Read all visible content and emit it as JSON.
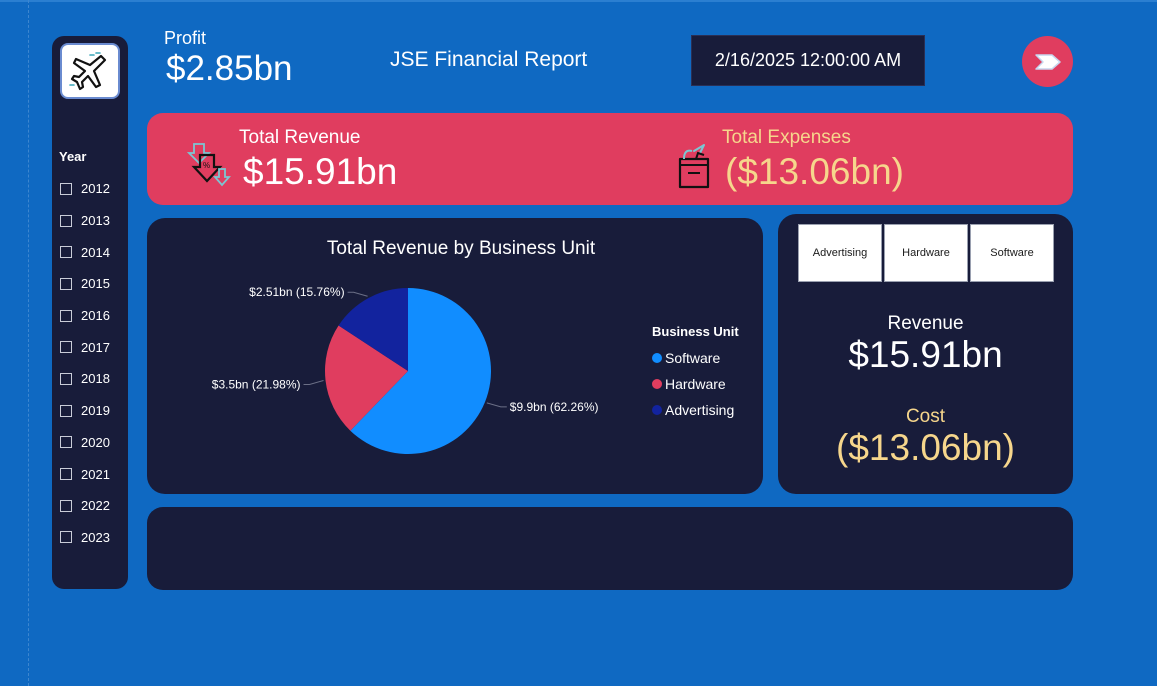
{
  "header": {
    "profit_label": "Profit",
    "profit_value": "$2.85bn",
    "report_title": "JSE Financial Report",
    "datetime": "2/16/2025 12:00:00 AM",
    "logo_icon": "airplane-icon",
    "nav_icon": "arrow-right-icon"
  },
  "sidebar": {
    "filter_title": "Year",
    "years": [
      {
        "label": "2012",
        "checked": false
      },
      {
        "label": "2013",
        "checked": false
      },
      {
        "label": "2014",
        "checked": false
      },
      {
        "label": "2015",
        "checked": false
      },
      {
        "label": "2016",
        "checked": false
      },
      {
        "label": "2017",
        "checked": false
      },
      {
        "label": "2018",
        "checked": false
      },
      {
        "label": "2019",
        "checked": false
      },
      {
        "label": "2020",
        "checked": false
      },
      {
        "label": "2021",
        "checked": false
      },
      {
        "label": "2022",
        "checked": false
      },
      {
        "label": "2023",
        "checked": false
      }
    ]
  },
  "banner": {
    "revenue_label": "Total Revenue",
    "revenue_value": "$15.91bn",
    "revenue_icon": "revenue-down-arrows-icon",
    "expenses_label": "Total Expenses",
    "expenses_value": "($13.06bn)",
    "expenses_icon": "shopping-bag-icon"
  },
  "chart_data": {
    "type": "pie",
    "title": "Total Revenue by Business Unit",
    "legend_title": "Business Unit",
    "legend_position": "right",
    "slices": [
      {
        "name": "Software",
        "value": 9.9,
        "percent": 62.26,
        "label": "$9.9bn (62.26%)",
        "color": "#118dff"
      },
      {
        "name": "Hardware",
        "value": 3.5,
        "percent": 21.98,
        "label": "$3.5bn (21.98%)",
        "color": "#e03d5f"
      },
      {
        "name": "Advertising",
        "value": 2.51,
        "percent": 15.76,
        "label": "$2.51bn (15.76%)",
        "color": "#12239e"
      }
    ]
  },
  "summary": {
    "buttons": [
      "Advertising",
      "Hardware",
      "Software"
    ],
    "revenue_label": "Revenue",
    "revenue_value": "$15.91bn",
    "cost_label": "Cost",
    "cost_value": "($13.06bn)"
  },
  "colors": {
    "background": "#0f69c2",
    "panel": "#181c3a",
    "accent_red": "#e03d5f",
    "accent_gold": "#f6d68c"
  }
}
